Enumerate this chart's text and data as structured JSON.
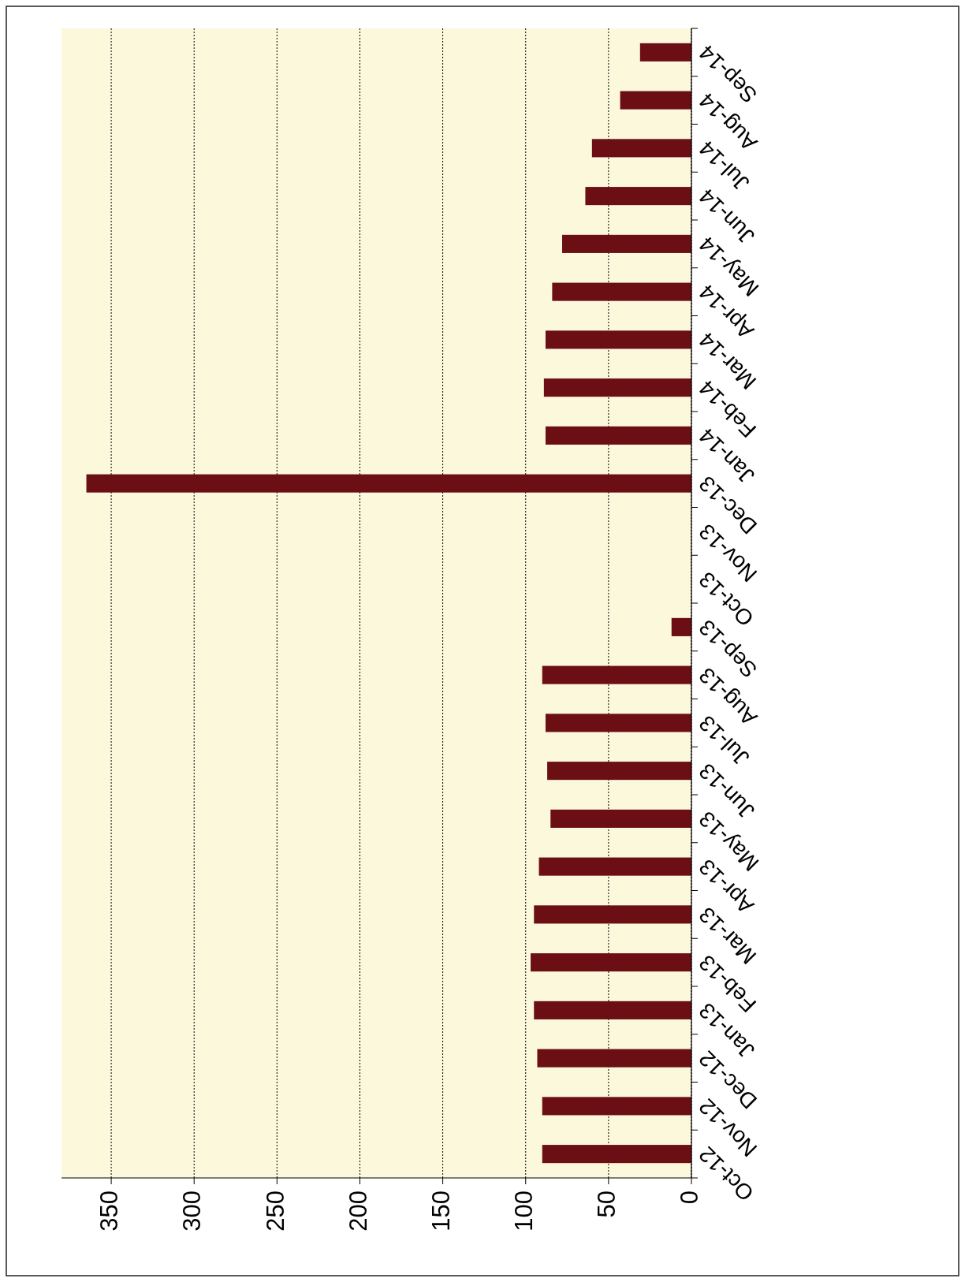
{
  "chart_data": {
    "type": "bar",
    "orientation": "horizontal",
    "categories": [
      "Sep-14",
      "Aug-14",
      "Jul-14",
      "Jun-14",
      "May-14",
      "Apr-14",
      "Mar-14",
      "Feb-14",
      "Jan-14",
      "Dec-13",
      "Nov-13",
      "Oct-13",
      "Sep-13",
      "Aug-13",
      "Jul-13",
      "Jun-13",
      "May-13",
      "Apr-13",
      "Mar-13",
      "Feb-13",
      "Jan-13",
      "Dec-12",
      "Nov-12",
      "Oct-12"
    ],
    "values": [
      31,
      43,
      60,
      64,
      78,
      84,
      88,
      89,
      88,
      365,
      0,
      0,
      12,
      90,
      88,
      87,
      85,
      92,
      95,
      97,
      95,
      93,
      90,
      90
    ],
    "color": "#6b0f14",
    "xlim": [
      380,
      0
    ],
    "xticks": [
      0,
      50,
      100,
      150,
      200,
      250,
      300,
      350
    ],
    "grid": "x"
  }
}
